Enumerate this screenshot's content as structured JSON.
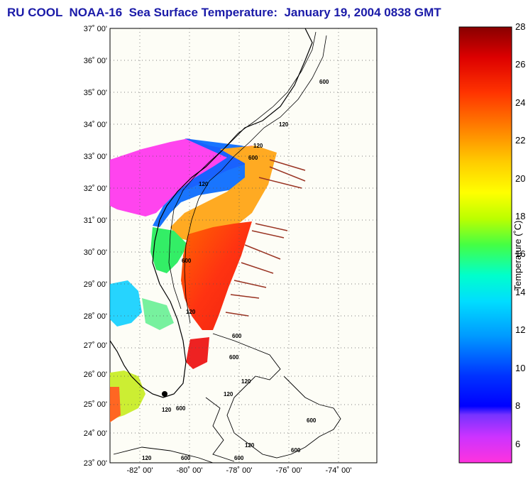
{
  "title": "RU COOL  NOAA-16  Sea Surface Temperature:  January 19, 2004 0838 GMT",
  "map": {
    "latitude_labels": [
      "37˚ 00'",
      "36˚ 00'",
      "35˚ 00'",
      "34˚ 00'",
      "33˚ 00'",
      "32˚ 00'",
      "31˚ 00'",
      "30˚ 00'",
      "29˚ 00'",
      "28˚ 00'",
      "27˚ 00'",
      "26˚ 00'",
      "25˚ 00'",
      "24˚ 00'",
      "23˚ 00'"
    ],
    "longitude_labels": [
      "-82˚ 00'",
      "-80˚ 00'",
      "-78˚ 00'",
      "-76˚ 00'",
      "-74˚ 00'"
    ],
    "contour_labels": [
      "120",
      "600",
      "120",
      "600",
      "120",
      "600",
      "600",
      "120",
      "600",
      "600",
      "120",
      "120",
      "600",
      "120",
      "600",
      "600",
      "120",
      "600",
      "120"
    ]
  },
  "colorbar": {
    "title": "Temperature (˚C)",
    "tick_labels": [
      "28",
      "26",
      "24",
      "22",
      "20",
      "18",
      "16",
      "14",
      "12",
      "10",
      "8",
      "6"
    ],
    "range": [
      5,
      28
    ]
  }
}
